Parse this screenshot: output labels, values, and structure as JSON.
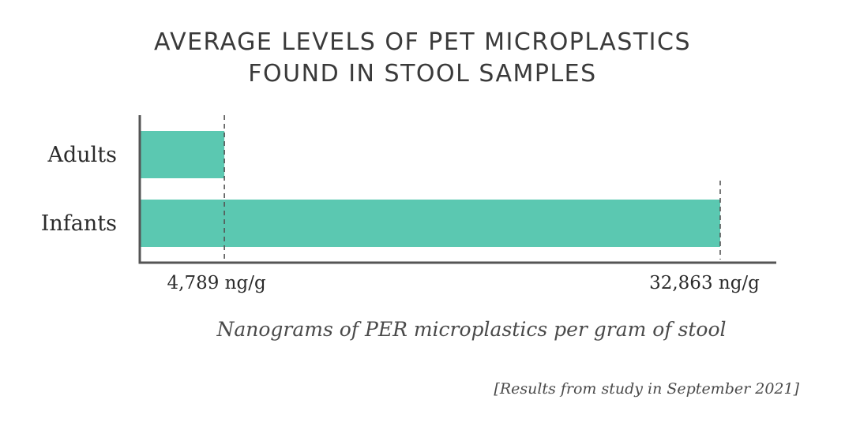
{
  "chart_data": {
    "type": "bar",
    "orientation": "horizontal",
    "title_lines": [
      "AVERAGE LEVELS OF PET MICROPLASTICS",
      "FOUND IN STOOL SAMPLES"
    ],
    "categories": [
      "Adults",
      "Infants"
    ],
    "values": [
      4789,
      32863
    ],
    "value_labels": [
      "4,789 ng/g",
      "32,863 ng/g"
    ],
    "xlabel": "Nanograms of PER microplastics per gram of stool",
    "ylabel": "",
    "xlim": [
      0,
      32863
    ],
    "grid": false,
    "legend": "none",
    "bar_color": "#5bc8b1",
    "reference_lines": "dashed vertical lines at bar ends",
    "footnote": "[Results from study in September 2021]"
  }
}
